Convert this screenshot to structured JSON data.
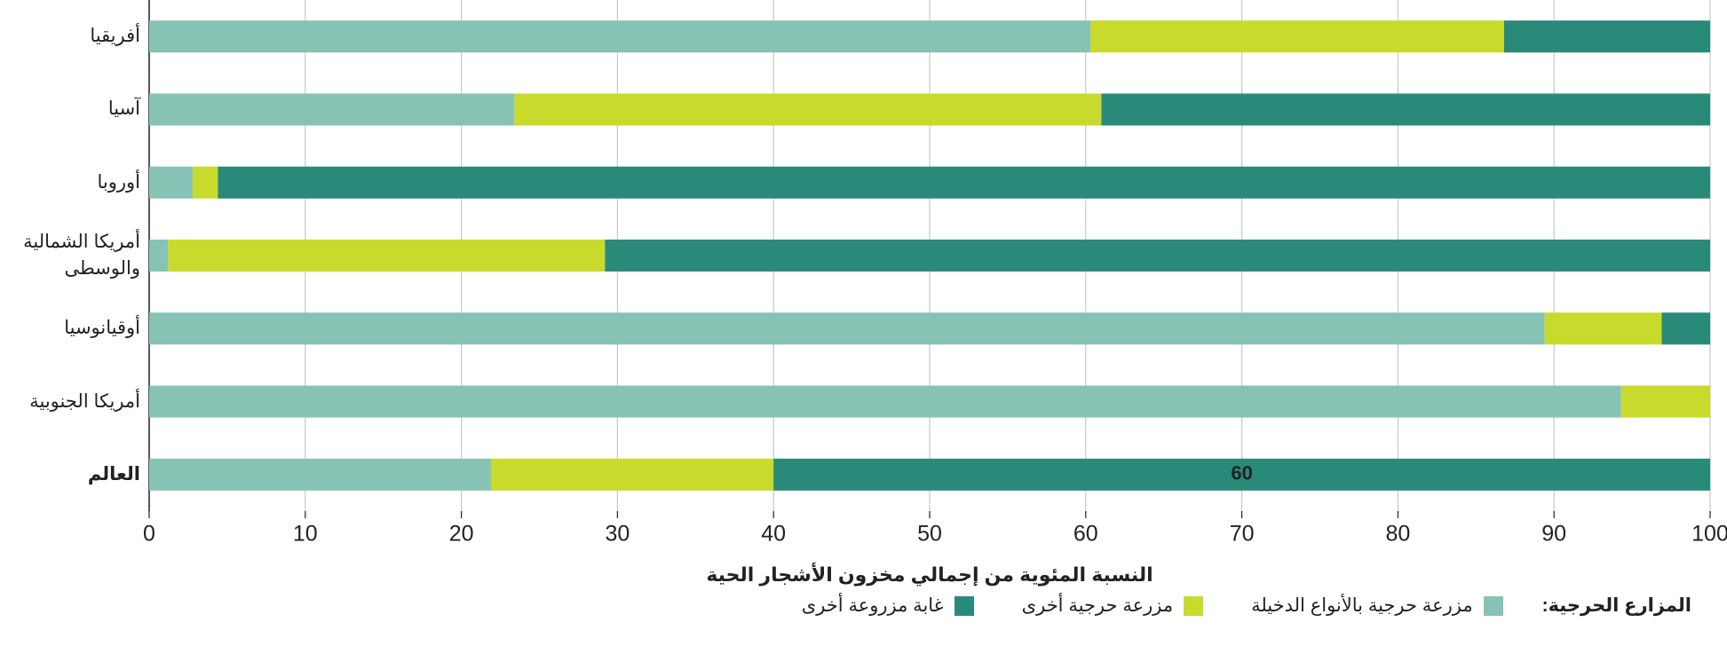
{
  "chart_data": {
    "type": "stacked-barh",
    "xlabel": "النسبة المئوية من إجمالي مخزون الأشجار الحية",
    "legend_title": "المزارع الحرجية:",
    "categories": [
      "أفريقيا",
      "آسيا",
      "أوروبا",
      "أمريكا الشمالية\nوالوسطى",
      "أوقيانوسيا",
      "أمريكا الجنوبية",
      "العالم"
    ],
    "series": [
      {
        "name": "مزرعة حرجية بالأنواع الدخيلة",
        "color": "#86c3b4",
        "values": [
          60.3,
          23.4,
          2.8,
          1.2,
          89.4,
          94.3,
          21.9
        ]
      },
      {
        "name": "مزرعة حرجية أخرى",
        "color": "#c8da2b",
        "values": [
          26.5,
          37.6,
          1.6,
          28,
          7.5,
          5.7,
          18.1
        ]
      },
      {
        "name": "غابة مزروعة أخرى",
        "color": "#2a8a7a",
        "values": [
          13.2,
          39,
          95.6,
          70.8,
          3.1,
          0,
          60
        ]
      }
    ],
    "xlim": [
      0,
      100
    ],
    "xticks": [
      0,
      10,
      20,
      30,
      40,
      50,
      60,
      70,
      80,
      90,
      100
    ],
    "grid": true
  }
}
